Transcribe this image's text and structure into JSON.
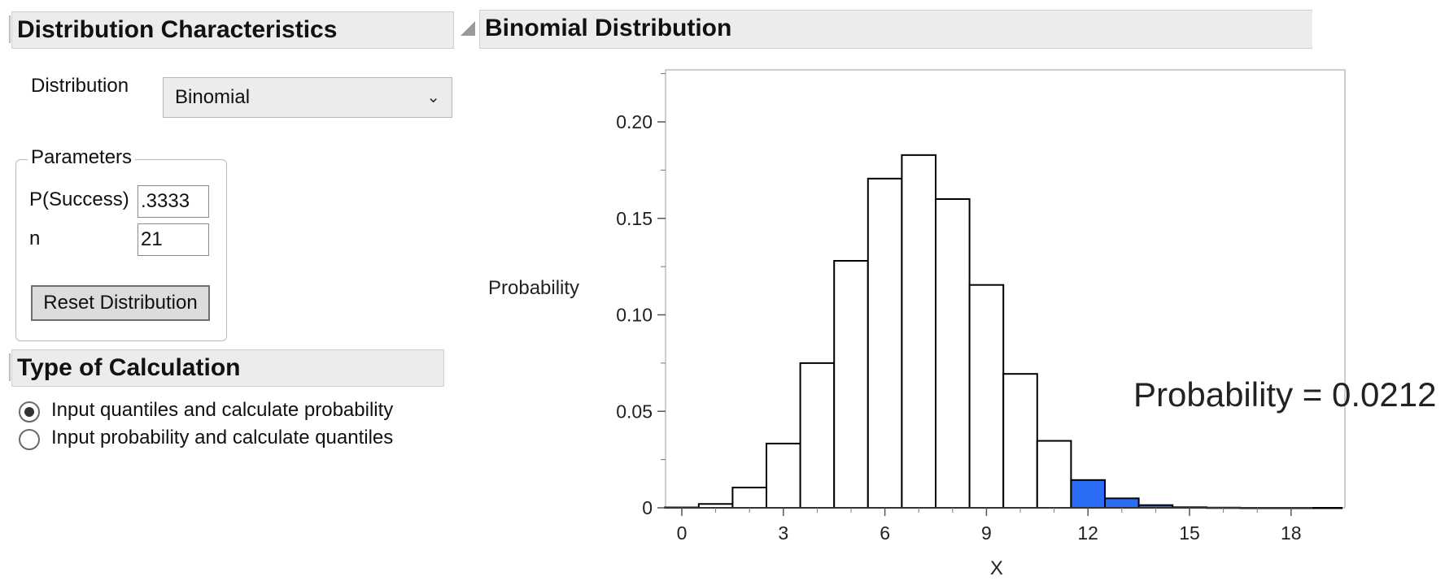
{
  "left_panel": {
    "title": "Distribution Characteristics",
    "distribution_label": "Distribution",
    "distribution_value": "Binomial",
    "parameters_legend": "Parameters",
    "p_success_label": "P(Success)",
    "p_success_value": ".3333",
    "n_label": "n",
    "n_value": "21",
    "reset_button": "Reset Distribution"
  },
  "calc_panel": {
    "title": "Type of Calculation",
    "options": [
      {
        "label": "Input quantiles and calculate probability",
        "checked": true
      },
      {
        "label": "Input probability and calculate quantiles",
        "checked": false
      }
    ]
  },
  "right_panel": {
    "title": "Binomial Distribution",
    "probability_annotation": "Probability = 0.0212"
  },
  "colors": {
    "highlight": "#2b6ef5",
    "bar_fill": "#ffffff",
    "bar_stroke": "#000000"
  },
  "chart_data": {
    "type": "bar",
    "xlabel": "X",
    "ylabel": "Probability",
    "xlim": [
      -0.5,
      19
    ],
    "ylim": [
      0,
      0.225
    ],
    "x_ticks": [
      0,
      3,
      6,
      9,
      12,
      15,
      18
    ],
    "y_ticks": [
      0,
      0.05,
      0.1,
      0.15,
      0.2
    ],
    "y_tick_labels": [
      "0",
      "0.05",
      "0.10",
      "0.15",
      "0.20"
    ],
    "x": [
      0,
      1,
      2,
      3,
      4,
      5,
      6,
      7,
      8,
      9,
      10,
      11,
      12,
      13,
      14,
      15,
      16,
      17,
      18,
      19
    ],
    "values": [
      0.0002,
      0.002,
      0.0105,
      0.0333,
      0.075,
      0.128,
      0.1706,
      0.1828,
      0.16,
      0.1155,
      0.0694,
      0.0347,
      0.0144,
      0.0049,
      0.0014,
      0.0003,
      0.0001,
      0,
      0,
      0
    ],
    "highlighted_from_x": 12
  }
}
